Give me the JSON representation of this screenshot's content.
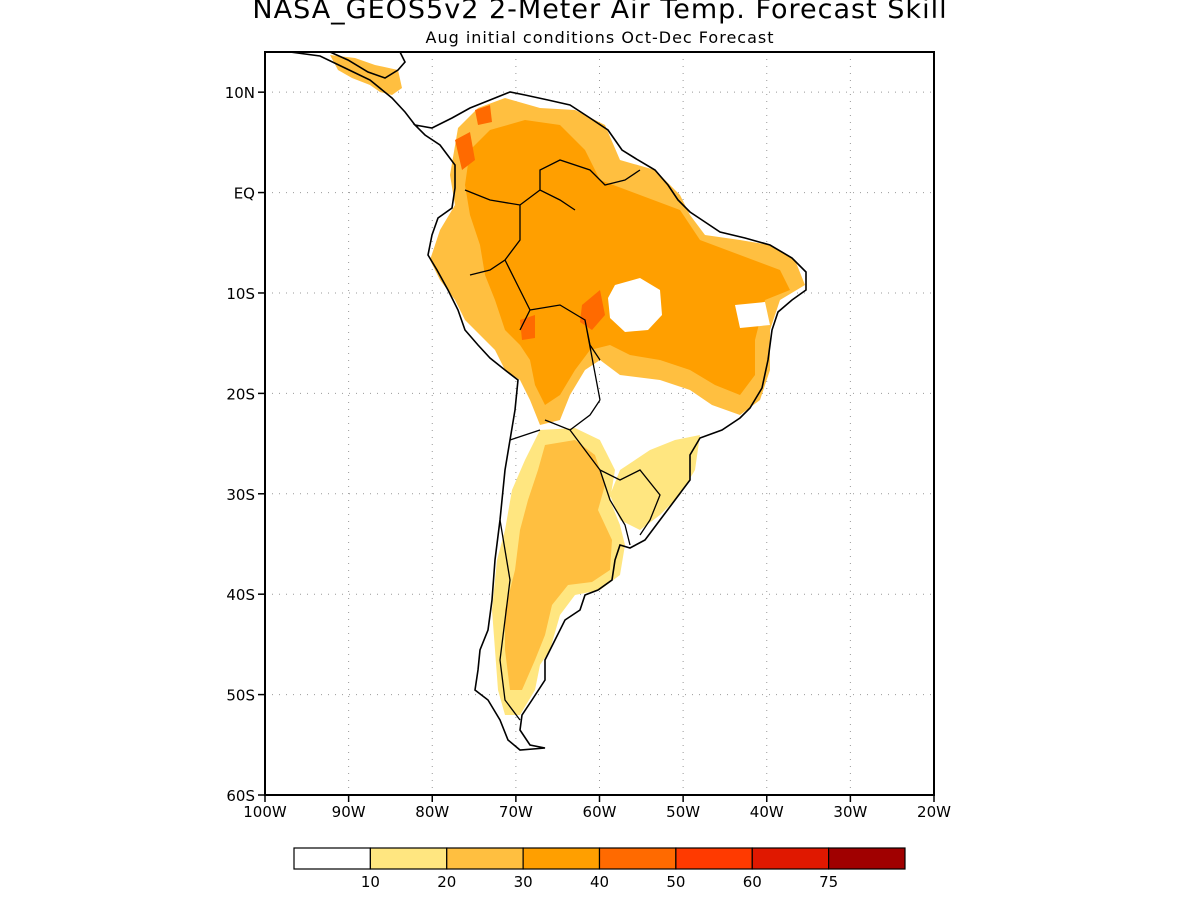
{
  "title": "NASA_GEOS5v2 2-Meter Air Temp. Forecast Skill",
  "subtitle": "Aug initial conditions  Oct-Dec Forecast",
  "map": {
    "lon_range": [
      -100,
      -20
    ],
    "lat_range": [
      -60,
      14
    ],
    "grid": "dotted",
    "x_ticks": [
      {
        "lon": -100,
        "label": "100W"
      },
      {
        "lon": -90,
        "label": "90W"
      },
      {
        "lon": -80,
        "label": "80W"
      },
      {
        "lon": -70,
        "label": "70W"
      },
      {
        "lon": -60,
        "label": "60W"
      },
      {
        "lon": -50,
        "label": "50W"
      },
      {
        "lon": -40,
        "label": "40W"
      },
      {
        "lon": -30,
        "label": "30W"
      },
      {
        "lon": -20,
        "label": "20W"
      }
    ],
    "y_ticks": [
      {
        "lat": 10,
        "label": "10N"
      },
      {
        "lat": 0,
        "label": "EQ"
      },
      {
        "lat": -10,
        "label": "10S"
      },
      {
        "lat": -20,
        "label": "20S"
      },
      {
        "lat": -30,
        "label": "30S"
      },
      {
        "lat": -40,
        "label": "40S"
      },
      {
        "lat": -50,
        "label": "50S"
      },
      {
        "lat": -60,
        "label": "60S"
      }
    ]
  },
  "colorbar": {
    "labels": [
      "10",
      "20",
      "30",
      "40",
      "50",
      "60",
      "75"
    ],
    "colors": [
      "#ffffff",
      "#ffe680",
      "#ffbf40",
      "#ff9f00",
      "#ff6a00",
      "#ff3a00",
      "#e01800",
      "#a00000"
    ]
  },
  "colors": {
    "land_outline": "#000000",
    "skill_low": "#ffe680",
    "skill_mid": "#ffbf40",
    "skill_high": "#ff9f00",
    "skill_peak": "#ff6a00"
  }
}
